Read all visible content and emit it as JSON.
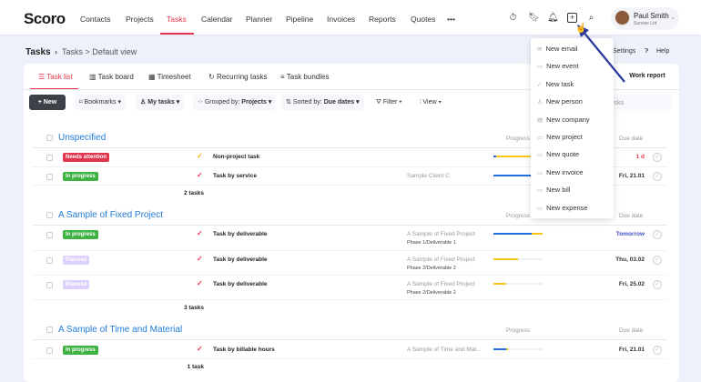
{
  "app": {
    "logo": "Scoro"
  },
  "nav": {
    "items": [
      "Contacts",
      "Projects",
      "Tasks",
      "Calendar",
      "Planner",
      "Pipeline",
      "Invoices",
      "Reports",
      "Quotes",
      "•••"
    ],
    "active": "Tasks"
  },
  "top_icons": [
    "timer-icon",
    "bookmark-icon",
    "bell-icon",
    "add-icon",
    "search-icon"
  ],
  "user": {
    "name": "Paul Smith",
    "company": "Sunrise Ltd"
  },
  "breadcrumb": {
    "title": "Tasks",
    "sep": "›",
    "view": "Tasks > Default view"
  },
  "header_links": {
    "settings": "Settings",
    "help": "Help"
  },
  "tabs": [
    "Task list",
    "Task board",
    "Timesheet",
    "Recurring tasks",
    "Task bundles"
  ],
  "work_report": "Work report",
  "toolbar": {
    "new": "+ New",
    "bookmarks": "Bookmarks ▾",
    "mytasks": "My tasks ▾",
    "grouped_prefix": "Grouped by:",
    "grouped_val": "Projects ▾",
    "sorted_prefix": "Sorted by:",
    "sorted_val": "Due dates ▾",
    "filter": "Filter ▾",
    "view": "View ▾",
    "search_placeholder": "asks"
  },
  "columns": {
    "progress": "Progress",
    "due": "Due date"
  },
  "groups": [
    {
      "title": "Unspecified",
      "count": "2 tasks",
      "rows": [
        {
          "status": "Needs attention",
          "name": "Non-project task",
          "project": "",
          "phase": "",
          "due": "1 d",
          "due_color": "#e8344e",
          "progress_blue": 0.05,
          "progress_yellow": 0.9
        },
        {
          "status": "In progress",
          "name": "Task by service",
          "project": "Sample Client C",
          "phase": "",
          "due": "Fri, 21.01",
          "progress_blue": 0.8,
          "progress_yellow": 0
        }
      ]
    },
    {
      "title": "A Sample of Fixed Project",
      "count": "3 tasks",
      "rows": [
        {
          "status": "In progress",
          "name": "Task by deliverable",
          "project": "A Sample of Fixed Project",
          "phase": "Phase 1/Deliverable 1",
          "due": "Tomorrow",
          "due_color": "#3b4fc4",
          "progress_blue": 0.78,
          "progress_yellow": 0.22
        },
        {
          "status": "Planned",
          "name": "Task by deliverable",
          "project": "A Sample of Fixed Project",
          "phase": "Phase 2/Deliverable 2",
          "due": "Thu, 03.02",
          "progress_blue": 0,
          "progress_yellow": 0.5
        },
        {
          "status": "Planned",
          "name": "Task by deliverable",
          "project": "A Sample of Fixed Project",
          "phase": "Phase 2/Deliverable 2",
          "due": "Fri, 25.02",
          "progress_blue": 0,
          "progress_yellow": 0.25
        }
      ]
    },
    {
      "title": "A Sample of Time and Material",
      "count": "1 task",
      "rows": [
        {
          "status": "In progress",
          "name": "Task by billable hours",
          "project": "A Sample of Time and Mat...",
          "phase": "",
          "due": "Fri, 21.01",
          "progress_blue": 0.25,
          "progress_yellow": 0.05
        }
      ]
    }
  ],
  "status_colors": {
    "Needs attention": "#e0354d",
    "In progress": "#3fb342",
    "Planned": "#ddd0fb"
  },
  "dropdown": [
    "New email",
    "New event",
    "New task",
    "New person",
    "New company",
    "New project",
    "New quote",
    "New invoice",
    "New bill",
    "New expense"
  ]
}
